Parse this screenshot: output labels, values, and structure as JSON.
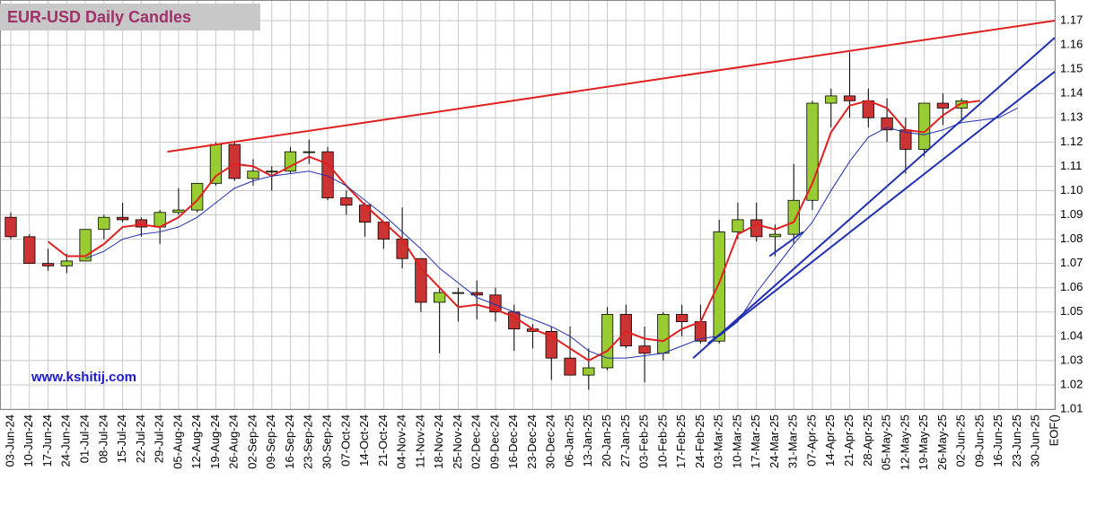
{
  "chart_data": {
    "type": "candlestick",
    "title": "EUR-USD Daily  Candles",
    "watermark": "www.kshitij.com",
    "categories": [
      "03-Jun-24",
      "10-Jun-24",
      "17-Jun-24",
      "24-Jun-24",
      "01-Jul-24",
      "08-Jul-24",
      "15-Jul-24",
      "22-Jul-24",
      "29-Jul-24",
      "05-Aug-24",
      "12-Aug-24",
      "19-Aug-24",
      "26-Aug-24",
      "02-Sep-24",
      "09-Sep-24",
      "16-Sep-24",
      "23-Sep-24",
      "30-Sep-24",
      "07-Oct-24",
      "14-Oct-24",
      "21-Oct-24",
      "04-Nov-24",
      "11-Nov-24",
      "18-Nov-24",
      "25-Nov-24",
      "02-Dec-24",
      "09-Dec-24",
      "16-Dec-24",
      "23-Dec-24",
      "30-Dec-24",
      "06-Jan-25",
      "13-Jan-25",
      "20-Jan-25",
      "27-Jan-25",
      "03-Feb-25",
      "10-Feb-25",
      "17-Feb-25",
      "24-Feb-25",
      "03-Mar-25",
      "10-Mar-25",
      "17-Mar-25",
      "24-Mar-25",
      "31-Mar-25",
      "07-Apr-25",
      "14-Apr-25",
      "21-Apr-25",
      "28-Apr-25",
      "05-May-25",
      "12-May-25",
      "19-May-25",
      "26-May-25",
      "02-Jun-25",
      "09-Jun-25",
      "16-Jun-25",
      "23-Jun-25",
      "30-Jun-25",
      "EOF()"
    ],
    "open": [
      1.089,
      1.081,
      1.07,
      1.069,
      1.071,
      1.084,
      1.089,
      1.088,
      1.085,
      1.091,
      1.092,
      1.103,
      1.119,
      1.105,
      1.108,
      1.108,
      1.116,
      1.116,
      1.097,
      1.094,
      1.087,
      1.08,
      1.072,
      1.054,
      1.058,
      1.058,
      1.057,
      1.05,
      1.043,
      1.042,
      1.031,
      1.024,
      1.027,
      1.049,
      1.036,
      1.033,
      1.049,
      1.046,
      1.038,
      1.083,
      1.088,
      1.081,
      1.082,
      1.096,
      1.136,
      1.139,
      1.137,
      1.13,
      1.125,
      1.117,
      1.136,
      1.134,
      null,
      null,
      null,
      null,
      null
    ],
    "high": [
      1.091,
      1.082,
      1.076,
      1.074,
      1.084,
      1.09,
      1.095,
      1.089,
      1.092,
      1.101,
      1.103,
      1.12,
      1.12,
      1.113,
      1.11,
      1.118,
      1.121,
      1.118,
      1.1,
      1.095,
      1.087,
      1.093,
      1.072,
      1.06,
      1.06,
      1.063,
      1.06,
      1.053,
      1.045,
      1.044,
      1.044,
      1.035,
      1.052,
      1.053,
      1.044,
      1.05,
      1.053,
      1.053,
      1.088,
      1.095,
      1.095,
      1.086,
      1.111,
      1.137,
      1.142,
      1.157,
      1.142,
      1.138,
      1.13,
      1.136,
      1.14,
      1.138,
      null,
      null,
      null,
      null,
      null
    ],
    "low": [
      1.08,
      1.07,
      1.067,
      1.066,
      1.071,
      1.08,
      1.087,
      1.081,
      1.078,
      1.09,
      1.091,
      1.102,
      1.104,
      1.102,
      1.1,
      1.107,
      1.111,
      1.096,
      1.09,
      1.081,
      1.076,
      1.068,
      1.05,
      1.033,
      1.046,
      1.047,
      1.046,
      1.034,
      1.035,
      1.022,
      1.024,
      1.018,
      1.026,
      1.035,
      1.021,
      1.03,
      1.04,
      1.037,
      1.037,
      1.08,
      1.079,
      1.073,
      1.078,
      1.092,
      1.126,
      1.13,
      1.126,
      1.12,
      1.107,
      1.114,
      1.127,
      1.129,
      null,
      null,
      null,
      null,
      null
    ],
    "close": [
      1.081,
      1.07,
      1.069,
      1.071,
      1.084,
      1.089,
      1.088,
      1.085,
      1.091,
      1.092,
      1.103,
      1.119,
      1.105,
      1.108,
      1.108,
      1.116,
      1.116,
      1.097,
      1.094,
      1.087,
      1.08,
      1.072,
      1.054,
      1.058,
      1.058,
      1.057,
      1.05,
      1.043,
      1.042,
      1.031,
      1.024,
      1.027,
      1.049,
      1.036,
      1.033,
      1.049,
      1.046,
      1.038,
      1.083,
      1.088,
      1.081,
      1.082,
      1.096,
      1.136,
      1.139,
      1.137,
      1.13,
      1.125,
      1.117,
      1.136,
      1.134,
      1.137,
      null,
      null,
      null,
      null,
      null
    ],
    "up_color": "#99cc33",
    "down_color": "#cc3333",
    "series": [
      {
        "color": "#e02020",
        "values": [
          null,
          null,
          1.079,
          1.073,
          1.073,
          1.078,
          1.085,
          1.086,
          1.085,
          1.089,
          1.096,
          1.106,
          1.111,
          1.11,
          1.106,
          1.11,
          1.114,
          1.111,
          1.102,
          1.094,
          1.087,
          1.08,
          1.068,
          1.06,
          1.052,
          1.053,
          1.051,
          1.048,
          1.043,
          1.04,
          1.035,
          1.03,
          1.034,
          1.042,
          1.039,
          1.038,
          1.043,
          1.046,
          1.062,
          1.082,
          1.086,
          1.084,
          1.087,
          1.103,
          1.124,
          1.135,
          1.137,
          1.134,
          1.125,
          1.124,
          1.131,
          1.136,
          1.137,
          null,
          null,
          null,
          null
        ]
      },
      {
        "color": "#2030b0",
        "values": [
          null,
          null,
          null,
          null,
          1.072,
          1.075,
          1.08,
          1.082,
          1.083,
          1.085,
          1.089,
          1.095,
          1.101,
          1.104,
          1.106,
          1.107,
          1.108,
          1.106,
          1.102,
          1.096,
          1.09,
          1.083,
          1.076,
          1.068,
          1.062,
          1.056,
          1.053,
          1.05,
          1.047,
          1.044,
          1.04,
          1.034,
          1.031,
          1.031,
          1.032,
          1.033,
          1.036,
          1.039,
          1.04,
          1.046,
          1.058,
          1.068,
          1.078,
          1.087,
          1.1,
          1.112,
          1.122,
          1.126,
          1.124,
          1.123,
          1.125,
          1.128,
          1.129,
          1.13,
          1.134,
          null,
          null
        ]
      }
    ],
    "trendlines": [
      {
        "color": "#e02020",
        "x": [
          8.4,
          56
        ],
        "y": [
          1.116,
          1.17
        ]
      },
      {
        "color": "#2030b0",
        "x": [
          36.6,
          56
        ],
        "y": [
          1.031,
          1.163
        ]
      },
      {
        "color": "#2030b0",
        "x": [
          37.4,
          56
        ],
        "y": [
          1.037,
          1.149
        ]
      },
      {
        "color": "#2030b0",
        "x": [
          40.7,
          42.5
        ],
        "y": [
          1.073,
          1.083
        ]
      }
    ],
    "ylim": [
      1.01,
      1.17
    ],
    "yticks": [
      1.01,
      1.02,
      1.03,
      1.04,
      1.05,
      1.06,
      1.07,
      1.08,
      1.09,
      {
        "value": 1.1,
        "label": "1.10"
      },
      1.11,
      1.12,
      1.13,
      1.14,
      1.15,
      1.16,
      1.17
    ],
    "grid": true
  }
}
